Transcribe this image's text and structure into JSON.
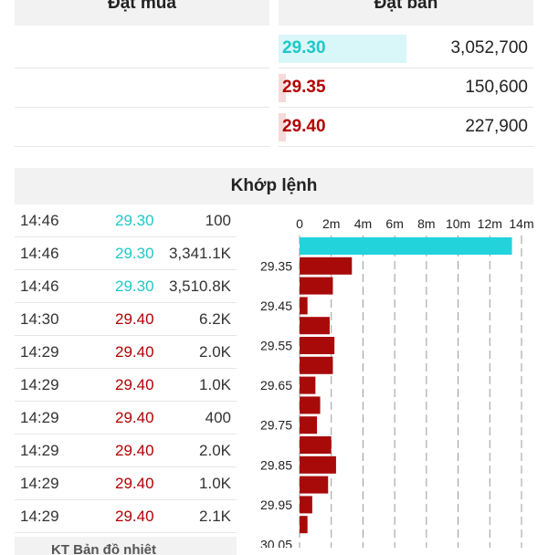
{
  "order_book": {
    "buy_title": "Đặt mua",
    "sell_title": "Đặt bán",
    "buy_rows": [
      {},
      {},
      {}
    ],
    "sell_rows": [
      {
        "price": "29.30",
        "volume": "3,052,700",
        "color": "#1ec8c8",
        "bar_color": "#d9f6f8",
        "ratio": 0.5
      },
      {
        "price": "29.35",
        "volume": "150,600",
        "color": "#b30000",
        "bar_color": "#f6dada",
        "ratio": 0.03
      },
      {
        "price": "29.40",
        "volume": "227,900",
        "color": "#b30000",
        "bar_color": "#f6dada",
        "ratio": 0.03
      }
    ]
  },
  "matched": {
    "title": "Khớp lệnh",
    "trades": [
      {
        "time": "14:46",
        "price": "29.30",
        "volume": "100",
        "color": "#1ec8c8"
      },
      {
        "time": "14:46",
        "price": "29.30",
        "volume": "3,341.1K",
        "color": "#1ec8c8"
      },
      {
        "time": "14:46",
        "price": "29.30",
        "volume": "3,510.8K",
        "color": "#1ec8c8"
      },
      {
        "time": "14:30",
        "price": "29.40",
        "volume": "6.2K",
        "color": "#b30000"
      },
      {
        "time": "14:29",
        "price": "29.40",
        "volume": "2.0K",
        "color": "#b30000"
      },
      {
        "time": "14:29",
        "price": "29.40",
        "volume": "1.0K",
        "color": "#b30000"
      },
      {
        "time": "14:29",
        "price": "29.40",
        "volume": "400",
        "color": "#b30000"
      },
      {
        "time": "14:29",
        "price": "29.40",
        "volume": "2.0K",
        "color": "#b30000"
      },
      {
        "time": "14:29",
        "price": "29.40",
        "volume": "1.0K",
        "color": "#b30000"
      },
      {
        "time": "14:29",
        "price": "29.40",
        "volume": "2.1K",
        "color": "#b30000"
      }
    ]
  },
  "chart_data": {
    "type": "bar",
    "orientation": "horizontal",
    "x_ticks": [
      "0",
      "2m",
      "4m",
      "6m",
      "8m",
      "10m",
      "12m",
      "14m"
    ],
    "xlim": [
      0,
      14
    ],
    "x_unit": "m",
    "y_tick_labels": [
      "29.35",
      "29.45",
      "29.55",
      "29.65",
      "29.75",
      "29.85",
      "29.95",
      "30.05"
    ],
    "categories": [
      "29.30",
      "29.35",
      "29.40",
      "29.45",
      "29.50",
      "29.55",
      "29.60",
      "29.65",
      "29.70",
      "29.75",
      "29.80",
      "29.85",
      "29.90",
      "29.95",
      "30.00"
    ],
    "values": [
      13.4,
      3.3,
      2.1,
      0.5,
      1.9,
      2.2,
      2.1,
      1.0,
      1.3,
      1.1,
      2.0,
      2.3,
      1.8,
      0.8,
      0.5
    ],
    "colors": [
      "#22d3dc",
      "#a80a0a",
      "#a80a0a",
      "#a80a0a",
      "#a80a0a",
      "#a80a0a",
      "#a80a0a",
      "#a80a0a",
      "#a80a0a",
      "#a80a0a",
      "#a80a0a",
      "#a80a0a",
      "#a80a0a",
      "#a80a0a",
      "#a80a0a"
    ],
    "grid": true
  },
  "bottom_tab": {
    "label": "KT Bản đồ nhiệt"
  }
}
